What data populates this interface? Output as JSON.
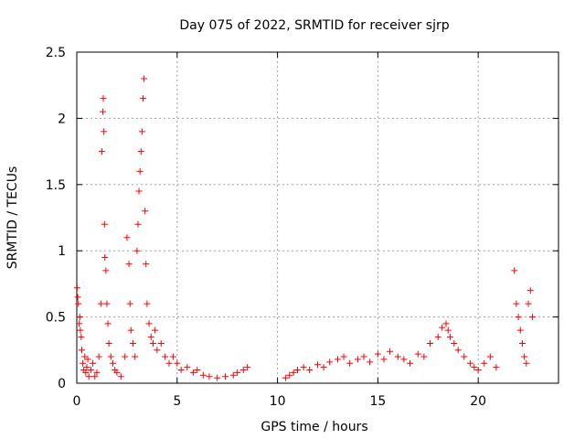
{
  "chart_data": {
    "type": "scatter",
    "title": "Day 075 of 2022, SRMTID for receiver sjrp",
    "xlabel": "GPS time / hours",
    "ylabel": "SRMTID / TECUs",
    "xlim": [
      0,
      24
    ],
    "ylim": [
      0,
      2.5
    ],
    "xticks": [
      0,
      5,
      10,
      15,
      20
    ],
    "yticks": [
      0,
      0.5,
      1,
      1.5,
      2,
      2.5
    ],
    "ytick_labels": [
      "0",
      "0.5",
      "1",
      "1.5",
      "2",
      "2.5"
    ],
    "grid": true,
    "marker": "+",
    "color": "#ff0000",
    "series": [
      {
        "name": "SRMTID",
        "x": [
          0.02,
          0.05,
          0.08,
          0.12,
          0.15,
          0.18,
          0.22,
          0.25,
          0.3,
          0.35,
          0.4,
          0.45,
          0.5,
          0.55,
          0.6,
          0.7,
          0.8,
          0.9,
          1.0,
          1.1,
          1.2,
          1.25,
          1.3,
          1.32,
          1.35,
          1.38,
          1.4,
          1.45,
          1.5,
          1.55,
          1.6,
          1.7,
          1.8,
          1.9,
          2.0,
          2.2,
          2.4,
          2.5,
          2.6,
          2.65,
          2.7,
          2.8,
          2.9,
          3.0,
          3.05,
          3.1,
          3.15,
          3.2,
          3.25,
          3.3,
          3.35,
          3.4,
          3.45,
          3.5,
          3.6,
          3.7,
          3.8,
          3.9,
          4.0,
          4.2,
          4.4,
          4.6,
          4.8,
          5.0,
          5.2,
          5.5,
          5.8,
          6.0,
          6.3,
          6.6,
          7.0,
          7.4,
          7.8,
          8.0,
          8.3,
          8.5,
          10.4,
          10.6,
          10.8,
          11.0,
          11.3,
          11.6,
          12.0,
          12.3,
          12.6,
          13.0,
          13.3,
          13.6,
          14.0,
          14.3,
          14.6,
          15.0,
          15.3,
          15.6,
          16.0,
          16.3,
          16.6,
          17.0,
          17.3,
          17.6,
          18.0,
          18.2,
          18.4,
          18.5,
          18.6,
          18.8,
          19.0,
          19.3,
          19.6,
          19.8,
          20.0,
          20.3,
          20.6,
          20.9,
          21.8,
          21.9,
          22.0,
          22.1,
          22.2,
          22.3,
          22.4,
          22.5,
          22.6,
          22.7
        ],
        "y": [
          0.72,
          0.65,
          0.6,
          0.45,
          0.5,
          0.4,
          0.35,
          0.25,
          0.15,
          0.1,
          0.2,
          0.08,
          0.12,
          0.18,
          0.05,
          0.1,
          0.15,
          0.05,
          0.08,
          0.2,
          0.6,
          1.75,
          2.05,
          2.15,
          1.9,
          1.2,
          0.95,
          0.85,
          0.6,
          0.45,
          0.3,
          0.2,
          0.15,
          0.1,
          0.08,
          0.05,
          0.2,
          1.1,
          0.9,
          0.6,
          0.4,
          0.3,
          0.2,
          1.0,
          1.2,
          1.45,
          1.6,
          1.75,
          1.9,
          2.15,
          2.3,
          1.3,
          0.9,
          0.6,
          0.45,
          0.35,
          0.3,
          0.4,
          0.25,
          0.3,
          0.2,
          0.15,
          0.2,
          0.15,
          0.1,
          0.12,
          0.08,
          0.1,
          0.06,
          0.05,
          0.04,
          0.05,
          0.06,
          0.08,
          0.1,
          0.12,
          0.04,
          0.06,
          0.08,
          0.1,
          0.12,
          0.1,
          0.14,
          0.12,
          0.16,
          0.18,
          0.2,
          0.15,
          0.18,
          0.2,
          0.16,
          0.22,
          0.18,
          0.24,
          0.2,
          0.18,
          0.15,
          0.22,
          0.2,
          0.3,
          0.35,
          0.42,
          0.45,
          0.4,
          0.35,
          0.3,
          0.25,
          0.2,
          0.15,
          0.12,
          0.1,
          0.15,
          0.2,
          0.12,
          0.85,
          0.6,
          0.5,
          0.4,
          0.3,
          0.2,
          0.15,
          0.6,
          0.7,
          0.5
        ]
      }
    ]
  }
}
